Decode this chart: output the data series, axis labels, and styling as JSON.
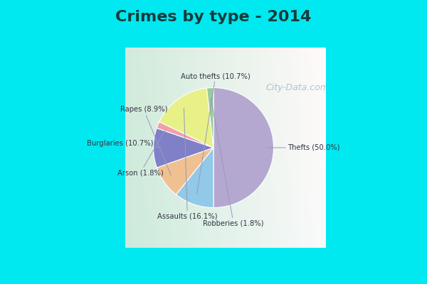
{
  "title": "Crimes by type - 2014",
  "title_fontsize": 16,
  "title_fontweight": "bold",
  "slices": [
    {
      "label": "Thefts",
      "pct": 50.0,
      "color": "#b5a8d0"
    },
    {
      "label": "Auto thefts",
      "pct": 10.7,
      "color": "#92c8e8"
    },
    {
      "label": "Rapes",
      "pct": 8.9,
      "color": "#f0c090"
    },
    {
      "label": "Burglaries",
      "pct": 10.7,
      "color": "#8080c8"
    },
    {
      "label": "Arson",
      "pct": 1.8,
      "color": "#f0a0a8"
    },
    {
      "label": "Assaults",
      "pct": 16.1,
      "color": "#e8f088"
    },
    {
      "label": "Robberies",
      "pct": 1.8,
      "color": "#98cc98"
    }
  ],
  "bg_cyan": "#00e8f0",
  "bg_green_light": "#c8e8d8",
  "bg_white": "#e8f4f0",
  "watermark": "City-Data.com",
  "label_color": "#333344",
  "line_color": "#9999bb"
}
